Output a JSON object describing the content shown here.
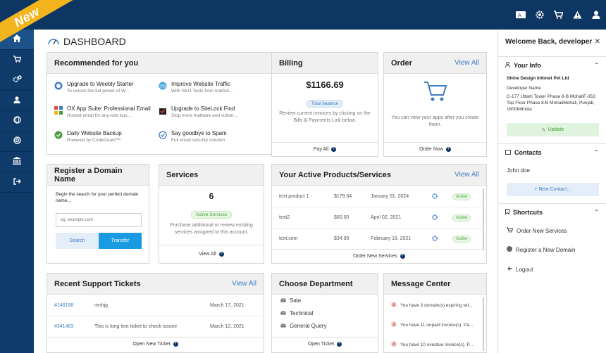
{
  "ribbon": "New",
  "dashboard_title": "DASHBOARD",
  "recommended": {
    "title": "Recommended for you",
    "items": [
      {
        "title": "Upgrade to Weebly Starter",
        "sub": "To unlock the full power of W..."
      },
      {
        "title": "Improve Website Traffic",
        "sub": "With SEO Tools from market..."
      },
      {
        "title": "OX App Suite: Professional Email",
        "sub": "Hosted email for any-size bus..."
      },
      {
        "title": "Upgrade to SiteLock Find",
        "sub": "Stop more malware and vulner..."
      },
      {
        "title": "Daily Website Backup",
        "sub": "Powered by CodeGuard™"
      },
      {
        "title": "Say goodbye to Spam",
        "sub": "Full email security solution"
      }
    ]
  },
  "billing": {
    "title": "Billing",
    "amount": "$1166.69",
    "badge": "Total balance",
    "desc": "Review current invoices by clicking on the Bills & Payments Link below.",
    "footer": "Pay All"
  },
  "order": {
    "title": "Order",
    "view_all": "View All",
    "desc": "You can view your apps after you create them.",
    "footer": "Order Now"
  },
  "domain": {
    "title": "Register a Domain Name",
    "desc": "Begin the search for your perfect domain name...",
    "placeholder": "eg. example.com",
    "search": "Search",
    "transfer": "Transfer"
  },
  "services": {
    "title": "Services",
    "count": "6",
    "badge": "Active Services",
    "desc": "Purchase additional or review existing services assigned to this account.",
    "footer": "View All"
  },
  "products": {
    "title": "Your Active Products/Services",
    "view_all": "View All",
    "rows": [
      {
        "name": "text product 1 -",
        "price": "$179.64",
        "date": "January 01, 2024",
        "status": "Active"
      },
      {
        "name": "text2",
        "price": "$60.00",
        "date": "April 02, 2021",
        "status": "Active"
      },
      {
        "name": "text.com",
        "price": "$34.99",
        "date": "February 16, 2021",
        "status": "Active"
      }
    ],
    "footer": "Order New Services"
  },
  "tickets": {
    "title": "Recent Support Tickets",
    "view_all": "View All",
    "rows": [
      {
        "id": "#146188",
        "subject": "mnhjg",
        "date": "March 17, 2021"
      },
      {
        "id": "#341483",
        "subject": "This is long text ticket to check issuee",
        "date": "March 12, 2021"
      }
    ],
    "footer": "Open New Ticket"
  },
  "department": {
    "title": "Choose Department",
    "items": [
      "Sale",
      "Technical",
      "General Query"
    ],
    "footer": "Open Ticket"
  },
  "messages": {
    "title": "Message Center",
    "items": [
      "You have 3 domain(s) expiring wit...",
      "You have 11 unpaid invoice(s). Pa...",
      "You have 10 overdue invoice(s). P..."
    ]
  },
  "right": {
    "welcome": "Welcome Back, developer",
    "your_info": "Your Info",
    "company": "Shine Design Infonet Pvt Ltd",
    "role": "Developer Name",
    "address": "C-177 Uttam Tower Phase 8-B MohaliF-353 Top Floor Phase 8-B MohaliMohali, Punjab, 160064India",
    "update": "Update",
    "contacts": "Contacts",
    "contact_name": "John doe",
    "new_contact": "+ New Contact...",
    "shortcuts": "Shortcuts",
    "shortcut_items": [
      "Order New Services",
      "Register a New Domain",
      "Logout"
    ]
  },
  "colors": {
    "navy": "#0d3663",
    "accent": "#3d7bc4",
    "ribbon": "#f4b41e",
    "green": "#4a9c3c"
  }
}
